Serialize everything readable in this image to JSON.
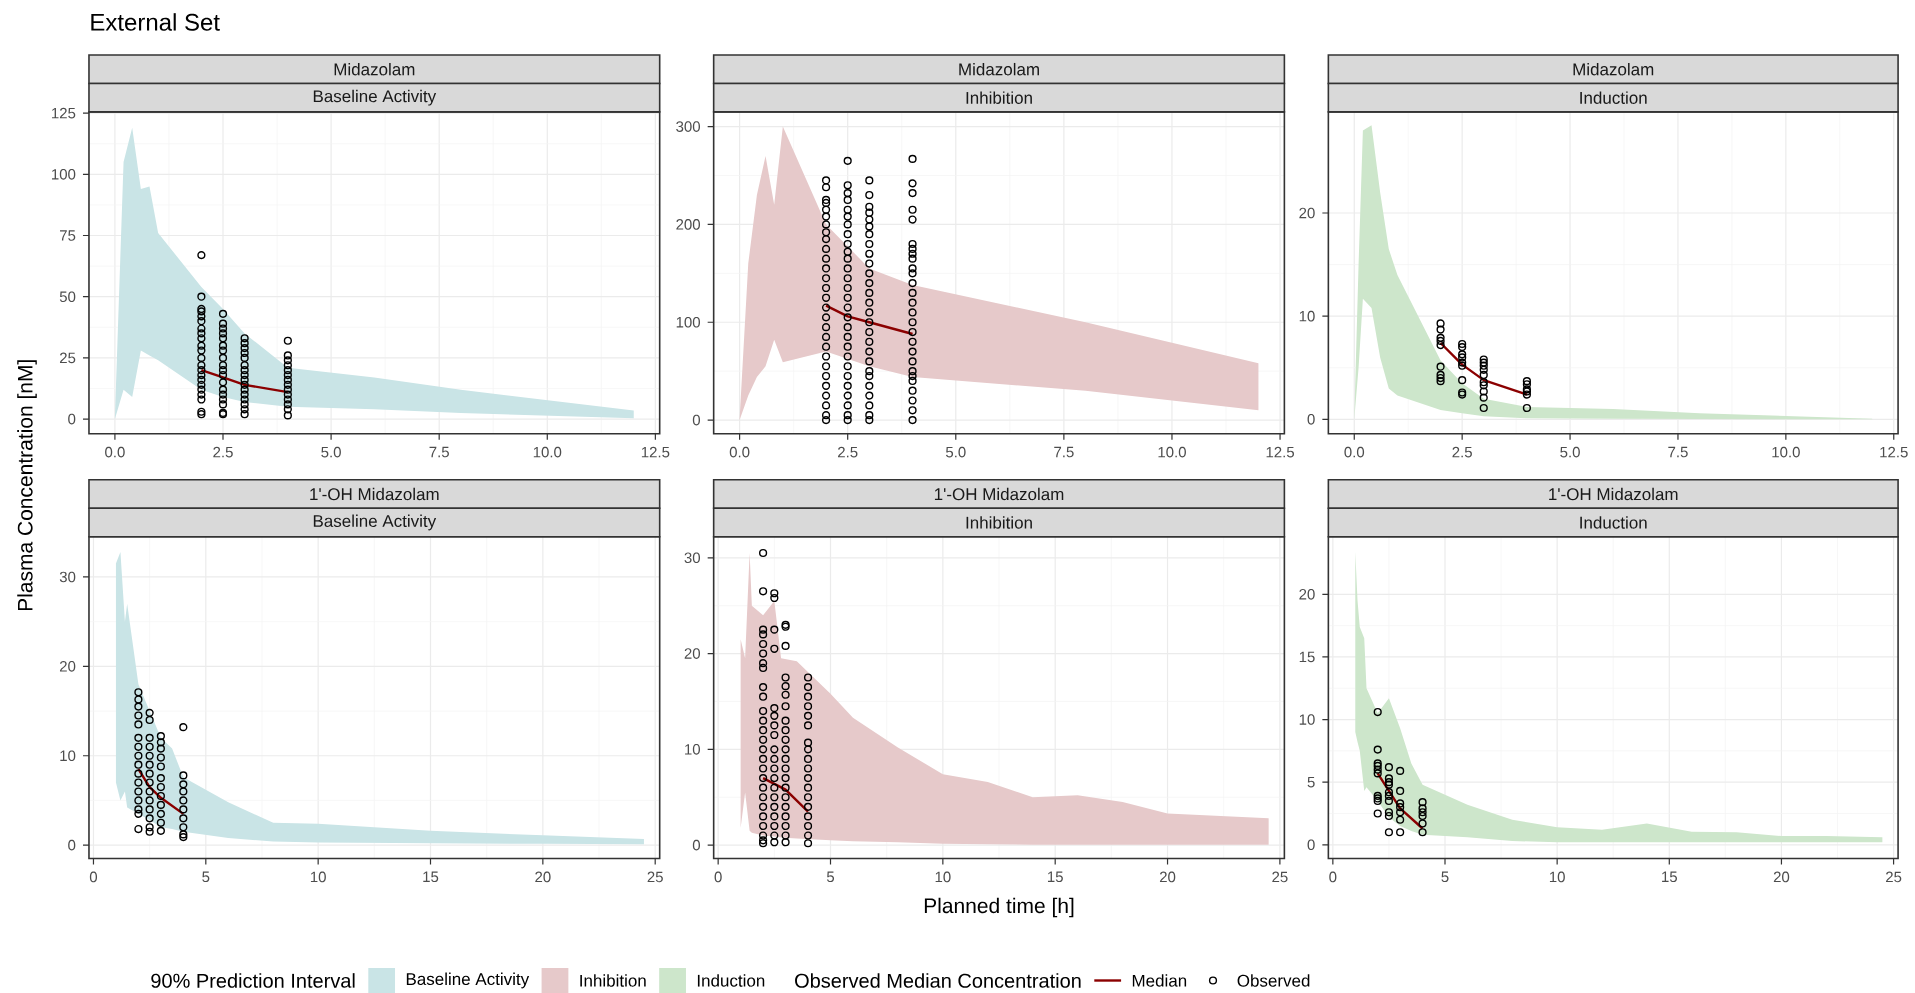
{
  "chart_data": [
    {
      "type": "line",
      "title": "Midazolam",
      "subtitle": "Baseline Activity",
      "ylabel": "Plasma Concentration [nM]",
      "annotations": [
        "External Set"
      ],
      "legend_title": "90% Prediction Interval",
      "legend": "bottom",
      "grid": true,
      "xlim": [
        -0.6,
        12.6
      ],
      "ylim": [
        -6,
        125.5
      ],
      "xticks": [
        {
          "value": 0,
          "label": "0.0"
        },
        {
          "value": 2.5,
          "label": "2.5"
        },
        {
          "value": 5,
          "label": "5.0"
        },
        {
          "value": 7.5,
          "label": "7.5"
        },
        {
          "value": 10,
          "label": "10.0"
        },
        {
          "value": 12.5,
          "label": "12.5"
        }
      ],
      "yticks": [
        0,
        25,
        50,
        75,
        100,
        125
      ],
      "series": [
        {
          "type": "area",
          "name": "Baseline Activity",
          "color": "#c9e4e6",
          "x": [
            0,
            0.2,
            0.4,
            0.6,
            0.8,
            1,
            2,
            2.5,
            3,
            4,
            6,
            8,
            12
          ],
          "values": [
            null,
            null,
            null,
            null,
            null,
            null,
            null,
            null,
            null,
            null,
            null,
            null,
            null
          ],
          "upper": [
            1,
            105,
            119,
            94,
            95,
            76,
            54,
            45,
            35,
            21,
            17,
            12,
            3.5
          ],
          "lower": [
            0,
            12,
            9,
            28,
            26,
            24,
            12,
            9,
            7,
            5,
            4,
            2.5,
            0.3
          ]
        },
        {
          "color": "#8b0000",
          "x": [
            2,
            2.5,
            3,
            4
          ],
          "values": [
            20,
            17,
            14,
            11
          ]
        },
        {
          "type": "scatter",
          "color": "#000000",
          "marker": "circle",
          "x": [
            2,
            2,
            2,
            2,
            2,
            2,
            2,
            2,
            2,
            2,
            2,
            2,
            2,
            2,
            2,
            2,
            2,
            2,
            2,
            2,
            2,
            2,
            2.5,
            2.5,
            2.5,
            2.5,
            2.5,
            2.5,
            2.5,
            2.5,
            2.5,
            2.5,
            2.5,
            2.5,
            2.5,
            2.5,
            2.5,
            2.5,
            2.5,
            2.5,
            3,
            3,
            3,
            3,
            3,
            3,
            3,
            3,
            3,
            3,
            3,
            3,
            3,
            3,
            3,
            3,
            4,
            4,
            4,
            4,
            4,
            4,
            4,
            4,
            4,
            4,
            4,
            4,
            4,
            4
          ],
          "values": [
            67,
            50,
            45,
            44,
            42,
            40,
            37,
            35,
            33,
            30,
            28,
            25,
            22,
            20,
            18,
            16,
            14,
            12,
            10,
            8,
            3,
            2,
            43,
            39,
            37,
            35,
            33,
            30,
            28,
            25,
            22,
            20,
            18,
            15,
            12,
            10,
            8,
            6,
            2.5,
            2,
            33,
            31,
            29,
            27,
            25,
            22,
            20,
            18,
            16,
            14,
            12,
            10,
            8,
            6,
            4,
            2,
            32,
            26,
            24,
            22,
            20,
            18,
            16,
            14,
            12,
            10,
            8,
            6,
            4,
            1.5
          ]
        }
      ]
    },
    {
      "type": "line",
      "title": "Midazolam",
      "subtitle": "Inhibition",
      "legend": "bottom",
      "grid": true,
      "xlim": [
        -0.6,
        12.6
      ],
      "ylim": [
        -14,
        315
      ],
      "xticks": [
        {
          "value": 0,
          "label": "0.0"
        },
        {
          "value": 2.5,
          "label": "2.5"
        },
        {
          "value": 5,
          "label": "5.0"
        },
        {
          "value": 7.5,
          "label": "7.5"
        },
        {
          "value": 10,
          "label": "10.0"
        },
        {
          "value": 12.5,
          "label": "12.5"
        }
      ],
      "yticks": [
        0,
        100,
        200,
        300
      ],
      "series": [
        {
          "type": "area",
          "name": "Inhibition",
          "color": "#e6c9ca",
          "x": [
            0,
            0.2,
            0.4,
            0.6,
            0.8,
            1,
            2,
            3,
            4,
            8,
            12
          ],
          "values": [
            null,
            null,
            null,
            null,
            null,
            null,
            null,
            null,
            null,
            null,
            null
          ],
          "upper": [
            1,
            160,
            230,
            270,
            220,
            300,
            200,
            155,
            138,
            100,
            58
          ],
          "lower": [
            0,
            25,
            44,
            55,
            82,
            59,
            70,
            55,
            44,
            30,
            10
          ]
        },
        {
          "color": "#8b0000",
          "x": [
            2,
            2.5,
            3,
            4
          ],
          "values": [
            117,
            106,
            100,
            88
          ]
        },
        {
          "type": "scatter",
          "color": "#000000",
          "marker": "circle",
          "x": [
            2,
            2,
            2,
            2,
            2,
            2,
            2,
            2,
            2,
            2,
            2,
            2,
            2,
            2,
            2,
            2,
            2,
            2,
            2,
            2,
            2,
            2,
            2,
            2,
            2,
            2,
            2,
            2,
            2.5,
            2.5,
            2.5,
            2.5,
            2.5,
            2.5,
            2.5,
            2.5,
            2.5,
            2.5,
            2.5,
            2.5,
            2.5,
            2.5,
            2.5,
            2.5,
            2.5,
            2.5,
            2.5,
            2.5,
            2.5,
            2.5,
            2.5,
            2.5,
            2.5,
            2.5,
            2.5,
            2.5,
            3,
            3,
            3,
            3,
            3,
            3,
            3,
            3,
            3,
            3,
            3,
            3,
            3,
            3,
            3,
            3,
            3,
            3,
            3,
            3,
            3,
            3,
            3,
            3,
            3,
            3,
            3,
            4,
            4,
            4,
            4,
            4,
            4,
            4,
            4,
            4,
            4,
            4,
            4,
            4,
            4,
            4,
            4,
            4,
            4,
            4,
            4,
            4,
            4,
            4,
            4,
            4,
            4,
            4
          ],
          "values": [
            245,
            238,
            225,
            222,
            215,
            208,
            200,
            192,
            185,
            175,
            165,
            155,
            145,
            135,
            125,
            115,
            105,
            95,
            85,
            75,
            65,
            55,
            45,
            35,
            25,
            15,
            5,
            0,
            265,
            240,
            232,
            225,
            215,
            208,
            200,
            190,
            180,
            172,
            165,
            155,
            145,
            135,
            125,
            115,
            105,
            95,
            85,
            75,
            65,
            55,
            45,
            35,
            25,
            15,
            5,
            0,
            245,
            230,
            218,
            212,
            205,
            198,
            190,
            180,
            170,
            160,
            150,
            140,
            130,
            120,
            110,
            100,
            90,
            80,
            70,
            60,
            50,
            45,
            35,
            25,
            15,
            5,
            0,
            267,
            242,
            232,
            215,
            205,
            180,
            175,
            170,
            165,
            155,
            150,
            140,
            130,
            120,
            110,
            100,
            90,
            80,
            70,
            60,
            50,
            45,
            40,
            30,
            20,
            10,
            0
          ]
        }
      ]
    },
    {
      "type": "line",
      "title": "Midazolam",
      "subtitle": "Induction",
      "legend": "bottom",
      "grid": true,
      "xlim": [
        -0.6,
        12.6
      ],
      "ylim": [
        -1.4,
        29.8
      ],
      "xticks": [
        {
          "value": 0,
          "label": "0.0"
        },
        {
          "value": 2.5,
          "label": "2.5"
        },
        {
          "value": 5,
          "label": "5.0"
        },
        {
          "value": 7.5,
          "label": "7.5"
        },
        {
          "value": 10,
          "label": "10.0"
        },
        {
          "value": 12.5,
          "label": "12.5"
        }
      ],
      "yticks": [
        0,
        10,
        20
      ],
      "series": [
        {
          "type": "area",
          "name": "Induction",
          "color": "#cde6cb",
          "x": [
            0,
            0.1,
            0.2,
            0.4,
            0.6,
            0.8,
            1,
            2,
            2.5,
            3,
            4,
            6,
            8,
            12
          ],
          "values": [
            null,
            null,
            null,
            null,
            null,
            null,
            null,
            null,
            null,
            null,
            null,
            null,
            null,
            null
          ],
          "upper": [
            0.1,
            15,
            28,
            28.5,
            22,
            16.5,
            14,
            5.7,
            3.5,
            2,
            1.2,
            1,
            0.6,
            0.05
          ],
          "lower": [
            0,
            5,
            11.7,
            10.8,
            6,
            3,
            2.3,
            0.9,
            0.6,
            0.3,
            0.1,
            0.05,
            0.02,
            0
          ]
        },
        {
          "color": "#8b0000",
          "x": [
            2,
            2.5,
            3,
            4
          ],
          "values": [
            7.4,
            5.3,
            3.8,
            2.4
          ]
        },
        {
          "type": "scatter",
          "color": "#000000",
          "marker": "circle",
          "x": [
            2,
            2,
            2,
            2,
            2,
            2,
            2,
            2,
            2,
            2.5,
            2.5,
            2.5,
            2.5,
            2.5,
            2.5,
            2.5,
            2.5,
            2.5,
            3,
            3,
            3,
            3,
            3,
            3,
            3,
            3,
            3,
            3,
            4,
            4,
            4,
            4,
            4,
            4
          ],
          "values": [
            9.3,
            8.7,
            7.9,
            7.6,
            7.2,
            5.1,
            4.3,
            4.0,
            3.7,
            7.3,
            7.0,
            6.3,
            6.0,
            5.5,
            5.2,
            3.8,
            2.6,
            2.4,
            5.8,
            5.5,
            5.2,
            4.8,
            4.3,
            3.6,
            3.3,
            2.7,
            2.1,
            1.1,
            3.7,
            3.4,
            2.9,
            2.7,
            2.4,
            1.1
          ]
        }
      ]
    },
    {
      "type": "line",
      "title": "1'-OH Midazolam",
      "subtitle": "Baseline Activity",
      "legend_title": "Observed Median Concentration",
      "legend": "bottom",
      "grid": true,
      "xlim": [
        -0.2,
        25.2
      ],
      "ylim": [
        -1.5,
        34.5
      ],
      "xticks": [
        0,
        5,
        10,
        15,
        20,
        25
      ],
      "yticks": [
        0,
        10,
        20,
        30
      ],
      "series": [
        {
          "type": "area",
          "color": "#c9e4e6",
          "x": [
            1,
            1.2,
            1.4,
            1.5,
            2,
            2.5,
            3,
            3.5,
            4,
            6,
            8,
            10,
            15,
            20,
            24.5
          ],
          "values": [
            null,
            null,
            null,
            null,
            null,
            null,
            null,
            null,
            null,
            null,
            null,
            null,
            null,
            null,
            null
          ],
          "upper": [
            31.5,
            32.8,
            25,
            27,
            18,
            15,
            12,
            10.8,
            7.6,
            4.8,
            2.5,
            2.4,
            1.6,
            1.1,
            0.7
          ],
          "lower": [
            7,
            5,
            6,
            4.2,
            3.5,
            2.8,
            2,
            1.8,
            1.5,
            0.8,
            0.4,
            0.3,
            0.2,
            0.15,
            0.1
          ]
        },
        {
          "name": "Median",
          "color": "#8b0000",
          "x": [
            2,
            2.5,
            3,
            4
          ],
          "values": [
            8.5,
            6.5,
            5.3,
            3.5
          ]
        },
        {
          "type": "scatter",
          "name": "Observed",
          "color": "#000000",
          "marker": "circle",
          "x": [
            2,
            2,
            2,
            2,
            2,
            2,
            2,
            2,
            2,
            2,
            2,
            2,
            2,
            2,
            2,
            2,
            2.5,
            2.5,
            2.5,
            2.5,
            2.5,
            2.5,
            2.5,
            2.5,
            2.5,
            2.5,
            2.5,
            2.5,
            2.5,
            2.5,
            3,
            3,
            3,
            3,
            3,
            3,
            3,
            3,
            3,
            3,
            3,
            3,
            4,
            4,
            4,
            4,
            4,
            4,
            4,
            4,
            4,
            4
          ],
          "values": [
            17.1,
            16.3,
            15.5,
            14.5,
            13.5,
            12,
            11,
            10,
            9,
            8,
            7,
            6,
            5,
            4,
            3.5,
            1.8,
            14.8,
            14,
            12,
            11,
            10,
            9,
            8,
            7,
            6,
            5,
            4,
            3,
            2,
            1.5,
            12.2,
            11.5,
            10.8,
            9.8,
            8.8,
            7.5,
            6.5,
            5.5,
            4.5,
            3.5,
            2.5,
            1.6,
            13.2,
            7.8,
            6.8,
            6,
            5,
            4,
            3,
            2,
            1.2,
            0.9
          ]
        }
      ]
    },
    {
      "type": "line",
      "title": "1'-OH Midazolam",
      "subtitle": "Inhibition",
      "xlabel": "Planned time [h]",
      "grid": true,
      "xlim": [
        -0.2,
        25.2
      ],
      "ylim": [
        -1.4,
        32.2
      ],
      "xticks": [
        0,
        5,
        10,
        15,
        20,
        25
      ],
      "yticks": [
        0,
        10,
        20,
        30
      ],
      "series": [
        {
          "type": "area",
          "color": "#e6c9ca",
          "x": [
            1,
            1.2,
            1.4,
            1.5,
            2,
            2.5,
            2.8,
            3.5,
            5,
            6,
            8,
            10,
            12,
            14,
            16,
            18,
            20,
            24.5
          ],
          "values": [
            null,
            null,
            null,
            null,
            null,
            null,
            null,
            null,
            null,
            null,
            null,
            null,
            null,
            null,
            null,
            null,
            null,
            null
          ],
          "upper": [
            21.5,
            19.5,
            30.5,
            25,
            24,
            25.5,
            19.5,
            19.2,
            15.8,
            13.3,
            10.2,
            7.4,
            6.6,
            5,
            5.2,
            4.5,
            3.3,
            2.8
          ],
          "lower": [
            1.8,
            5.5,
            1.5,
            1.3,
            1,
            0.9,
            0.8,
            0.7,
            0.5,
            0.4,
            0.3,
            0.15,
            0.1,
            0.05,
            0.05,
            0.05,
            0.05,
            0.05
          ]
        },
        {
          "color": "#8b0000",
          "x": [
            2,
            2.5,
            3,
            4
          ],
          "values": [
            7.0,
            6.4,
            5.8,
            3.5
          ]
        },
        {
          "type": "scatter",
          "color": "#000000",
          "marker": "circle",
          "x": [
            2,
            2,
            2,
            2,
            2,
            2,
            2,
            2,
            2,
            2,
            2,
            2,
            2,
            2,
            2,
            2,
            2,
            2,
            2,
            2,
            2,
            2,
            2,
            2,
            2,
            2,
            2.5,
            2.5,
            2.5,
            2.5,
            2.5,
            2.5,
            2.5,
            2.5,
            2.5,
            2.5,
            2.5,
            2.5,
            2.5,
            2.5,
            2.5,
            2.5,
            2.5,
            2.5,
            2.5,
            3,
            3,
            3,
            3,
            3,
            3,
            3,
            3,
            3,
            3,
            3,
            3,
            3,
            3,
            3,
            3,
            3,
            3,
            3,
            3,
            3,
            4,
            4,
            4,
            4,
            4,
            4,
            4,
            4,
            4,
            4,
            4,
            4,
            4,
            4,
            4,
            4,
            4,
            4
          ],
          "values": [
            30.5,
            26.5,
            22.5,
            22,
            21,
            20,
            19,
            18.5,
            16.5,
            15.5,
            14,
            13,
            12,
            11,
            10,
            9,
            8,
            7,
            6,
            5,
            4,
            3,
            2,
            1,
            0.5,
            0.2,
            26.3,
            25.8,
            22.5,
            20.5,
            14.3,
            13.5,
            12.5,
            11.5,
            10,
            9,
            8,
            7,
            6,
            5,
            4,
            3,
            2,
            1,
            0.3,
            23,
            22.8,
            20.8,
            17.5,
            16.6,
            15.7,
            14.5,
            13,
            12,
            11,
            10,
            9,
            8,
            7,
            6,
            5,
            4,
            3,
            2,
            1,
            0.3,
            17.5,
            16.5,
            15.5,
            14.5,
            13.5,
            12.5,
            10.7,
            10,
            9,
            8,
            7,
            6,
            5,
            4,
            3,
            2,
            1,
            0.2
          ]
        }
      ]
    },
    {
      "type": "line",
      "title": "1'-OH Midazolam",
      "subtitle": "Induction",
      "grid": true,
      "xlim": [
        -0.2,
        25.2
      ],
      "ylim": [
        -1.1,
        24.6
      ],
      "xticks": [
        0,
        5,
        10,
        15,
        20,
        25
      ],
      "yticks": [
        0,
        5,
        10,
        15,
        20
      ],
      "series": [
        {
          "type": "area",
          "color": "#cde6cb",
          "x": [
            1,
            1.1,
            1.2,
            1.4,
            1.5,
            2,
            2.5,
            3,
            3.5,
            4,
            5,
            6,
            8,
            10,
            12,
            14,
            16,
            18,
            20,
            22,
            24.5
          ],
          "values": [
            null,
            null,
            null,
            null,
            null,
            null,
            null,
            null,
            null,
            null,
            null,
            null,
            null,
            null,
            null,
            null,
            null,
            null,
            null,
            null,
            null
          ],
          "upper": [
            23.4,
            19.5,
            17.4,
            16.5,
            12.5,
            10.5,
            11.7,
            9.3,
            6.5,
            4.8,
            4,
            3.2,
            2,
            1.4,
            1.2,
            1.7,
            1.05,
            1,
            0.7,
            0.7,
            0.6
          ],
          "lower": [
            9,
            8.2,
            7.5,
            4.3,
            4.6,
            3.5,
            2.2,
            1.5,
            1.1,
            0.8,
            0.7,
            0.6,
            0.3,
            0.2,
            0.2,
            0.2,
            0.2,
            0.2,
            0.2,
            0.2,
            0.2
          ]
        },
        {
          "color": "#8b0000",
          "x": [
            2,
            2.5,
            3,
            4
          ],
          "values": [
            5.7,
            4.3,
            2.9,
            1.3
          ]
        },
        {
          "type": "scatter",
          "color": "#000000",
          "marker": "circle",
          "x": [
            2,
            2,
            2,
            2,
            2,
            2,
            2,
            2,
            2,
            2,
            2.5,
            2.5,
            2.5,
            2.5,
            2.5,
            2.5,
            2.5,
            2.5,
            2.5,
            2.5,
            3,
            3,
            3,
            3,
            3,
            3,
            3,
            4,
            4,
            4,
            4,
            4,
            4
          ],
          "values": [
            10.6,
            7.6,
            6.5,
            6.3,
            6.0,
            5.7,
            3.9,
            3.7,
            3.5,
            2.5,
            6.2,
            5.3,
            5.0,
            4.8,
            4.2,
            3.9,
            3.5,
            2.6,
            2.3,
            1.0,
            5.9,
            4.3,
            3.3,
            3.0,
            2.6,
            2.0,
            1.0,
            3.4,
            2.9,
            2.6,
            2.3,
            1.7,
            1.0
          ]
        }
      ]
    }
  ]
}
